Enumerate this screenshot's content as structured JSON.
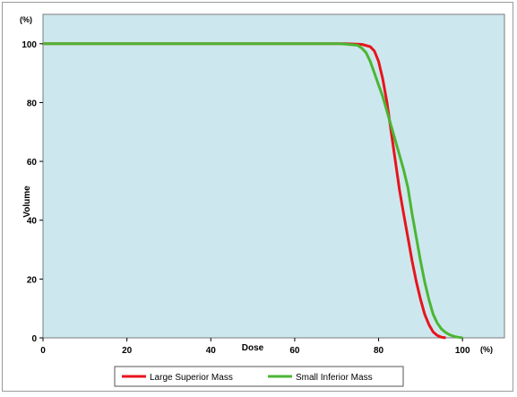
{
  "chart_data": {
    "type": "line",
    "title": "",
    "xlabel": "Dose",
    "ylabel": "Volume",
    "x_unit": "(%)",
    "y_unit": "(%)",
    "xlim": [
      0,
      110
    ],
    "ylim": [
      0,
      110
    ],
    "x_ticks": [
      0,
      20,
      40,
      60,
      80,
      100
    ],
    "y_ticks": [
      0,
      20,
      40,
      60,
      80,
      100
    ],
    "grid": false,
    "legend_position": "bottom",
    "plot_background": "#cce8ee",
    "series": [
      {
        "name": "Large Superior Mass",
        "color": "#e8141c",
        "points": [
          [
            0,
            100
          ],
          [
            72,
            100
          ],
          [
            76,
            99.8
          ],
          [
            78,
            99
          ],
          [
            79,
            97.5
          ],
          [
            80,
            94
          ],
          [
            81,
            88
          ],
          [
            82,
            80
          ],
          [
            83,
            70
          ],
          [
            84,
            60
          ],
          [
            85,
            50
          ],
          [
            86,
            42
          ],
          [
            87,
            34
          ],
          [
            88,
            26
          ],
          [
            89,
            19
          ],
          [
            90,
            13
          ],
          [
            91,
            8
          ],
          [
            92,
            4.5
          ],
          [
            93,
            2
          ],
          [
            94,
            0.8
          ],
          [
            95,
            0.2
          ],
          [
            96,
            0
          ]
        ]
      },
      {
        "name": "Small Inferior Mass",
        "color": "#4cb533",
        "points": [
          [
            0,
            100
          ],
          [
            71,
            100
          ],
          [
            75,
            99.5
          ],
          [
            76,
            98.5
          ],
          [
            77,
            97
          ],
          [
            78,
            94
          ],
          [
            79,
            90
          ],
          [
            80,
            86
          ],
          [
            81,
            82
          ],
          [
            82,
            77
          ],
          [
            83,
            72
          ],
          [
            84,
            67
          ],
          [
            85,
            62
          ],
          [
            86,
            57
          ],
          [
            87,
            51
          ],
          [
            88,
            42
          ],
          [
            89,
            34
          ],
          [
            90,
            26
          ],
          [
            91,
            19
          ],
          [
            92,
            13
          ],
          [
            93,
            8
          ],
          [
            94,
            5
          ],
          [
            95,
            3
          ],
          [
            96,
            1.8
          ],
          [
            97,
            1
          ],
          [
            98,
            0.5
          ],
          [
            99,
            0.2
          ],
          [
            100,
            0
          ]
        ]
      }
    ]
  }
}
